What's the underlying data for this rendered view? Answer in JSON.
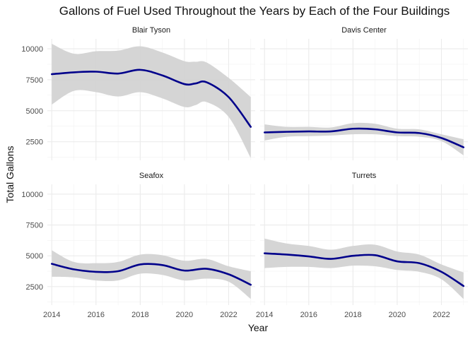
{
  "chart_data": {
    "type": "line",
    "title": "Gallons of Fuel Used Throughout the Years by Each of the Four Buildings",
    "xlabel": "Year",
    "ylabel": "Total Gallons",
    "xlim": [
      2013.8,
      2023.2
    ],
    "ylim": [
      1000,
      10800
    ],
    "x_ticks": [
      2014,
      2016,
      2018,
      2020,
      2022
    ],
    "y_ticks": [
      2500,
      5000,
      7500,
      10000
    ],
    "grid": true,
    "line_color": "#00008b",
    "band_color": "#d3d3d3",
    "panels": [
      {
        "name": "Blair Tyson",
        "x": [
          2014,
          2015,
          2016,
          2017,
          2018,
          2019,
          2020,
          2020.5,
          2021,
          2022,
          2023
        ],
        "y": [
          7950,
          8100,
          8150,
          8000,
          8300,
          7850,
          7150,
          7200,
          7300,
          6100,
          3700
        ],
        "lower": [
          5500,
          6600,
          6500,
          6150,
          6500,
          6000,
          5300,
          5450,
          5700,
          4500,
          1200
        ],
        "upper": [
          10400,
          9600,
          9800,
          9850,
          10200,
          9700,
          9000,
          8950,
          8900,
          7650,
          6100
        ]
      },
      {
        "name": "Davis Center",
        "x": [
          2014,
          2015,
          2016,
          2017,
          2018,
          2019,
          2020,
          2021,
          2022,
          2023
        ],
        "y": [
          3250,
          3300,
          3330,
          3330,
          3550,
          3500,
          3250,
          3200,
          2800,
          2050
        ],
        "lower": [
          2600,
          2900,
          2950,
          3000,
          3100,
          3100,
          2950,
          2900,
          2550,
          1400
        ],
        "upper": [
          3900,
          3700,
          3700,
          3650,
          4000,
          3950,
          3550,
          3500,
          3100,
          2700
        ]
      },
      {
        "name": "Seafox",
        "x": [
          2014,
          2015,
          2016,
          2017,
          2018,
          2019,
          2020,
          2021,
          2022,
          2023
        ],
        "y": [
          4350,
          3900,
          3700,
          3750,
          4300,
          4250,
          3800,
          3950,
          3500,
          2650
        ],
        "lower": [
          3300,
          3250,
          3000,
          3000,
          3550,
          3450,
          3000,
          3150,
          2900,
          1500
        ],
        "upper": [
          5450,
          4500,
          4400,
          4500,
          5100,
          5050,
          4600,
          4750,
          4150,
          3750
        ]
      },
      {
        "name": "Turrets",
        "x": [
          2014,
          2015,
          2016,
          2017,
          2018,
          2019,
          2020,
          2021,
          2022,
          2023
        ],
        "y": [
          5200,
          5100,
          4950,
          4750,
          5000,
          5050,
          4550,
          4400,
          3700,
          2550
        ],
        "lower": [
          4000,
          4100,
          4100,
          4000,
          4200,
          4150,
          3850,
          3700,
          3100,
          1500
        ],
        "upper": [
          6400,
          6000,
          5800,
          5500,
          5800,
          5900,
          5350,
          5100,
          4300,
          3650
        ]
      }
    ]
  }
}
